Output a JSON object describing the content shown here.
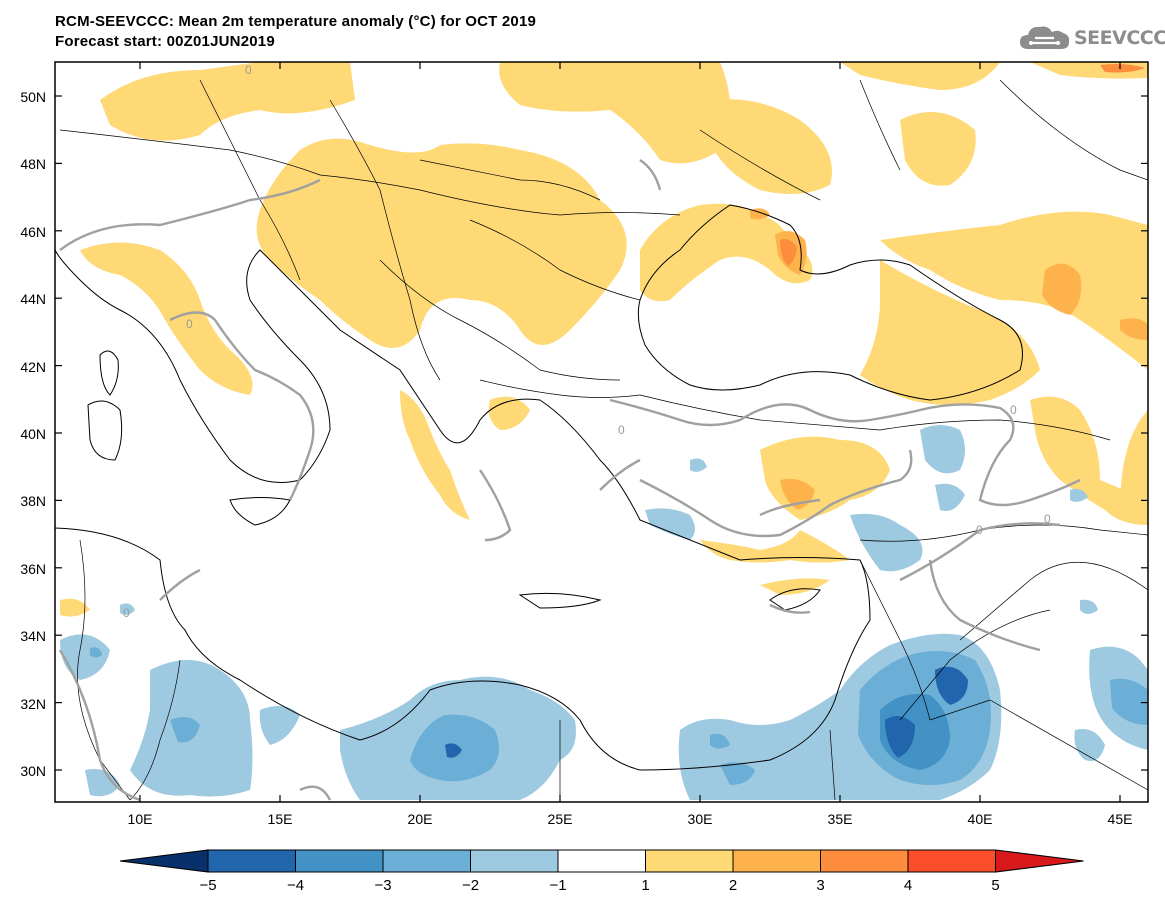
{
  "title": {
    "line1": "RCM-SEEVCCC: Mean 2m temperature anomaly (°C) for OCT 2019",
    "line2": "Forecast start: 00Z01JUN2019"
  },
  "logo": {
    "text": "SEEVCCC",
    "icon": "cloud-icon",
    "color": "#8c8c8c"
  },
  "map": {
    "lat_ticks": [
      "50N",
      "48N",
      "46N",
      "44N",
      "42N",
      "40N",
      "38N",
      "36N",
      "34N",
      "32N",
      "30N"
    ],
    "lat_values": [
      50,
      48,
      46,
      44,
      42,
      40,
      38,
      36,
      34,
      32,
      30
    ],
    "lon_ticks": [
      "10E",
      "15E",
      "20E",
      "25E",
      "30E",
      "35E",
      "40E",
      "45E"
    ],
    "lon_values": [
      10,
      15,
      20,
      25,
      30,
      35,
      40,
      45
    ],
    "contour_label": "0"
  },
  "colorbar": {
    "labels": [
      "−5",
      "−4",
      "−3",
      "−2",
      "−1",
      "1",
      "2",
      "3",
      "4",
      "5"
    ],
    "colors": [
      "#08306b",
      "#2166ac",
      "#4292c6",
      "#6baed6",
      "#9ecae1",
      "#ffffff",
      "#fed976",
      "#feb24c",
      "#fd8d3c",
      "#fc4e2a",
      "#d7191c"
    ]
  }
}
